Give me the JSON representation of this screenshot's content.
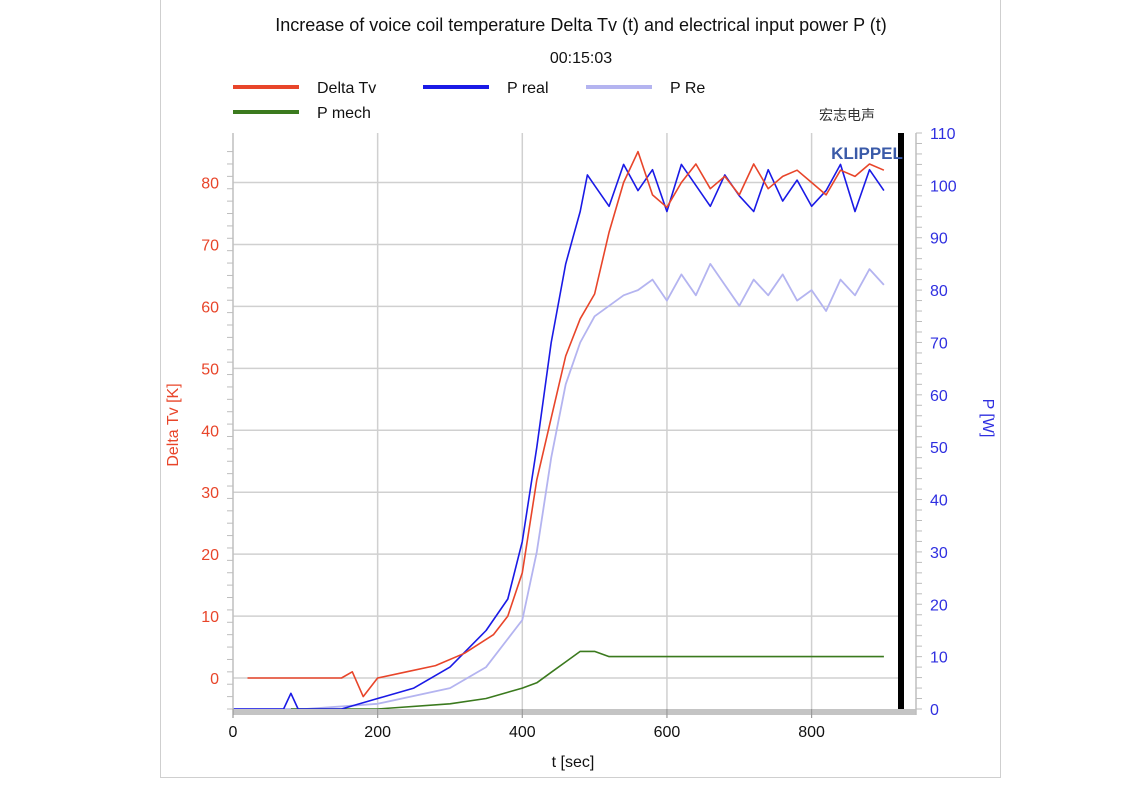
{
  "chart_data": {
    "type": "line",
    "title": "Increase of voice coil temperature Delta Tv (t) and electrical input power P (t)",
    "subtitle": "00:15:03",
    "xlabel": "t [sec]",
    "ylabel_left": "Delta Tv [K]",
    "ylabel_right": "P [W]",
    "xlim": [
      0,
      925
    ],
    "ylim_left": [
      -5,
      88
    ],
    "ylim_right": [
      0,
      110
    ],
    "x_ticks": [
      "0",
      "200",
      "400",
      "600",
      "800"
    ],
    "y_left_ticks": [
      "0",
      "10",
      "20",
      "30",
      "40",
      "50",
      "60",
      "70",
      "80"
    ],
    "y_right_ticks": [
      "0",
      "10",
      "20",
      "30",
      "40",
      "50",
      "60",
      "70",
      "80",
      "90",
      "100",
      "110"
    ],
    "grid": true,
    "legend_position": "top-left",
    "watermark": "宏志电声",
    "brand": "KLIPPEL",
    "series": [
      {
        "name": "Delta Tv",
        "axis": "left",
        "color": "#e8452a",
        "x": [
          20,
          80,
          150,
          165,
          180,
          200,
          240,
          280,
          320,
          360,
          380,
          400,
          420,
          440,
          460,
          480,
          500,
          520,
          540,
          560,
          580,
          600,
          620,
          640,
          660,
          680,
          700,
          720,
          740,
          760,
          780,
          800,
          820,
          840,
          860,
          880,
          900
        ],
        "y": [
          0,
          0,
          0,
          1,
          -3,
          0,
          1,
          2,
          4,
          7,
          10,
          17,
          32,
          42,
          52,
          58,
          62,
          72,
          80,
          85,
          78,
          76,
          80,
          83,
          79,
          81,
          78,
          83,
          79,
          81,
          82,
          80,
          78,
          82,
          81,
          83,
          82
        ]
      },
      {
        "name": "P real",
        "axis": "right",
        "color": "#1a1ae6",
        "x": [
          0,
          70,
          80,
          90,
          100,
          150,
          200,
          250,
          300,
          350,
          380,
          400,
          420,
          440,
          460,
          470,
          480,
          490,
          500,
          520,
          540,
          560,
          580,
          600,
          620,
          640,
          660,
          680,
          700,
          720,
          740,
          760,
          780,
          800,
          820,
          840,
          860,
          880,
          900
        ],
        "y": [
          0,
          0,
          3,
          0,
          0,
          0,
          2,
          4,
          8,
          15,
          21,
          32,
          50,
          70,
          85,
          90,
          95,
          102,
          100,
          96,
          104,
          99,
          103,
          95,
          104,
          100,
          96,
          102,
          98,
          95,
          103,
          97,
          101,
          96,
          99,
          104,
          95,
          103,
          99
        ]
      },
      {
        "name": "P Re",
        "axis": "right",
        "color": "#b4b4f0",
        "x": [
          0,
          100,
          200,
          300,
          350,
          400,
          420,
          440,
          460,
          480,
          500,
          520,
          540,
          560,
          580,
          600,
          620,
          640,
          660,
          680,
          700,
          720,
          740,
          760,
          780,
          800,
          820,
          840,
          860,
          880,
          900
        ],
        "y": [
          0,
          0,
          1,
          4,
          8,
          17,
          30,
          48,
          62,
          70,
          75,
          77,
          79,
          80,
          82,
          78,
          83,
          79,
          85,
          81,
          77,
          82,
          79,
          83,
          78,
          80,
          76,
          82,
          79,
          84,
          81
        ]
      },
      {
        "name": "P mech",
        "axis": "right",
        "color": "#3b7a1e",
        "x": [
          80,
          200,
          300,
          350,
          400,
          420,
          440,
          460,
          480,
          500,
          520,
          560,
          600,
          640,
          680,
          720,
          760,
          800,
          840,
          880,
          900
        ],
        "y": [
          0,
          0,
          1,
          2,
          4,
          5,
          7,
          9,
          11,
          11,
          10,
          10,
          10,
          10,
          10,
          10,
          10,
          10,
          10,
          10,
          10
        ]
      }
    ]
  }
}
